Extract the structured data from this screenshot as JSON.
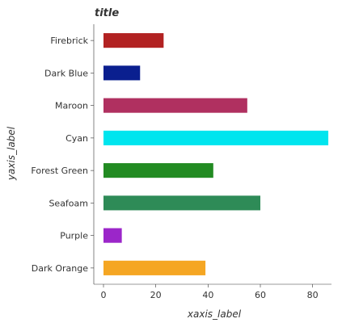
{
  "chart_data": {
    "type": "bar",
    "orientation": "horizontal",
    "title": "title",
    "xlabel": "xaxis_label",
    "ylabel": "yaxis_label",
    "categories": [
      "Dark Orange",
      "Purple",
      "Seafoam",
      "Forest Green",
      "Cyan",
      "Maroon",
      "Dark Blue",
      "Firebrick"
    ],
    "values": [
      39,
      7,
      60,
      42,
      86,
      55,
      14,
      23
    ],
    "colors": [
      "#f5a623",
      "#9b26c9",
      "#2e8b57",
      "#228b22",
      "#00e5ee",
      "#b03060",
      "#0a1f8f",
      "#b22222"
    ],
    "xlim": [
      0,
      90
    ],
    "xticks": [
      0,
      20,
      40,
      60,
      80
    ],
    "xtick_labels": [
      "0",
      "20",
      "40",
      "60",
      "80"
    ],
    "grid": false,
    "legend": "none"
  }
}
